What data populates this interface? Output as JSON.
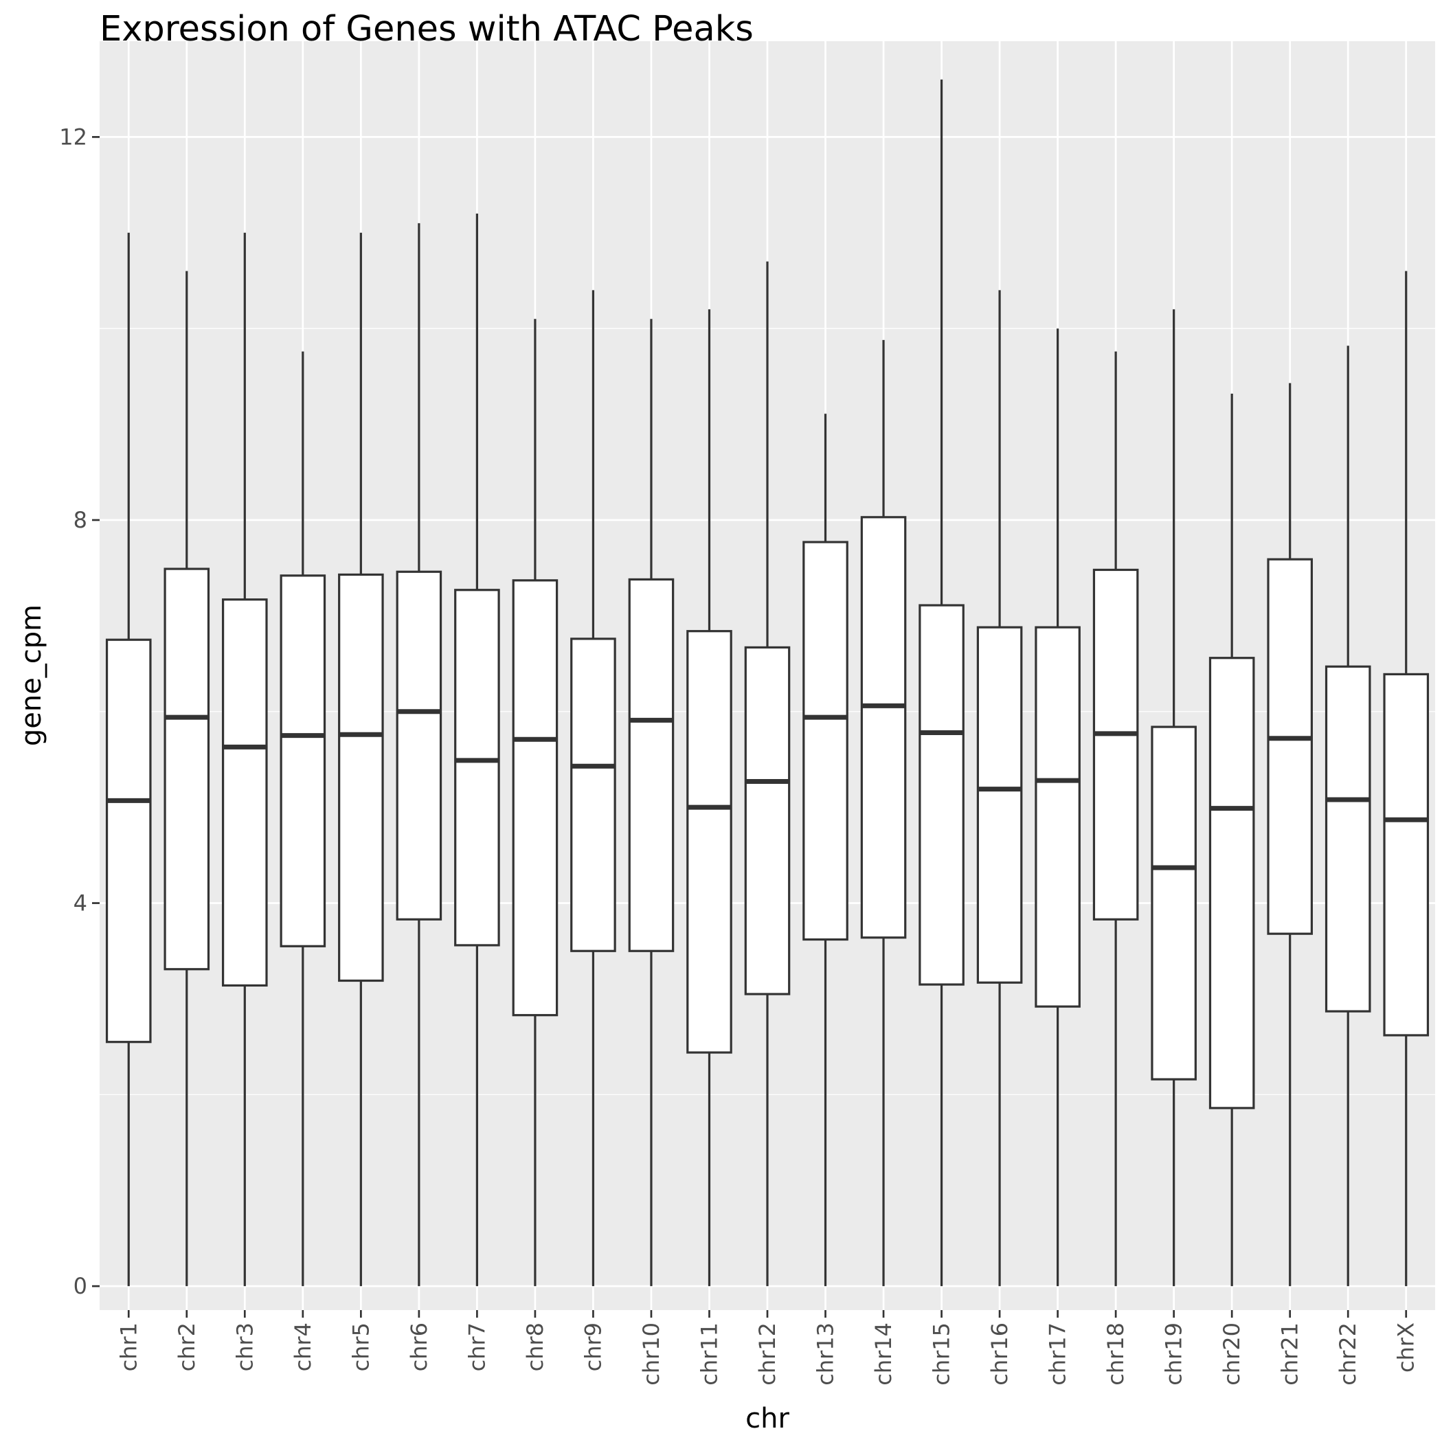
{
  "chart_data": {
    "type": "boxplot",
    "title": "Expression of Genes with ATAC Peaks",
    "xlabel": "chr",
    "ylabel": "gene_cpm",
    "ylim": [
      -0.25,
      13.0
    ],
    "yticks": [
      0,
      4,
      8,
      12
    ],
    "ytick_labels": [
      "0",
      "4",
      "8",
      "12"
    ],
    "grid": true,
    "legend": "none",
    "colors": {
      "panel_background": "#ebebeb",
      "grid_major": "#ffffff",
      "box_fill": "#ffffff",
      "box_line": "#333333",
      "tick_label": "#4d4d4d"
    },
    "categories": [
      "chr1",
      "chr2",
      "chr3",
      "chr4",
      "chr5",
      "chr6",
      "chr7",
      "chr8",
      "chr9",
      "chr10",
      "chr11",
      "chr12",
      "chr13",
      "chr14",
      "chr15",
      "chr16",
      "chr17",
      "chr18",
      "chr19",
      "chr20",
      "chr21",
      "chr22",
      "chrX"
    ],
    "boxes": [
      {
        "min": 0,
        "q1": 2.55,
        "median": 5.07,
        "q3": 6.75,
        "max": 11.0
      },
      {
        "min": 0,
        "q1": 3.31,
        "median": 5.94,
        "q3": 7.49,
        "max": 10.6
      },
      {
        "min": 0,
        "q1": 3.14,
        "median": 5.63,
        "q3": 7.17,
        "max": 11.0
      },
      {
        "min": 0,
        "q1": 3.55,
        "median": 5.75,
        "q3": 7.42,
        "max": 9.76
      },
      {
        "min": 0,
        "q1": 3.19,
        "median": 5.76,
        "q3": 7.43,
        "max": 11.0
      },
      {
        "min": 0,
        "q1": 3.83,
        "median": 6.0,
        "q3": 7.46,
        "max": 11.1
      },
      {
        "min": 0,
        "q1": 3.56,
        "median": 5.49,
        "q3": 7.27,
        "max": 11.2
      },
      {
        "min": 0,
        "q1": 2.83,
        "median": 5.71,
        "q3": 7.37,
        "max": 10.1
      },
      {
        "min": 0,
        "q1": 3.5,
        "median": 5.43,
        "q3": 6.76,
        "max": 10.4
      },
      {
        "min": 0,
        "q1": 3.5,
        "median": 5.91,
        "q3": 7.38,
        "max": 10.1
      },
      {
        "min": 0,
        "q1": 2.44,
        "median": 5.0,
        "q3": 6.84,
        "max": 10.2
      },
      {
        "min": 0,
        "q1": 3.05,
        "median": 5.27,
        "q3": 6.67,
        "max": 10.7
      },
      {
        "min": 0,
        "q1": 3.62,
        "median": 5.94,
        "q3": 7.77,
        "max": 9.11
      },
      {
        "min": 0,
        "q1": 3.64,
        "median": 6.06,
        "q3": 8.03,
        "max": 9.88
      },
      {
        "min": 0,
        "q1": 3.15,
        "median": 5.78,
        "q3": 7.11,
        "max": 12.6
      },
      {
        "min": 0,
        "q1": 3.17,
        "median": 5.19,
        "q3": 6.88,
        "max": 10.4
      },
      {
        "min": 0,
        "q1": 2.92,
        "median": 5.28,
        "q3": 6.88,
        "max": 10.0
      },
      {
        "min": 0,
        "q1": 3.83,
        "median": 5.77,
        "q3": 7.48,
        "max": 9.76
      },
      {
        "min": 0,
        "q1": 2.16,
        "median": 4.37,
        "q3": 5.84,
        "max": 10.2
      },
      {
        "min": 0,
        "q1": 1.86,
        "median": 4.99,
        "q3": 6.56,
        "max": 9.32
      },
      {
        "min": 0,
        "q1": 3.68,
        "median": 5.72,
        "q3": 7.59,
        "max": 9.43
      },
      {
        "min": 0,
        "q1": 2.87,
        "median": 5.08,
        "q3": 6.47,
        "max": 9.82
      },
      {
        "min": 0,
        "q1": 2.62,
        "median": 4.87,
        "q3": 6.39,
        "max": 10.6
      }
    ]
  }
}
